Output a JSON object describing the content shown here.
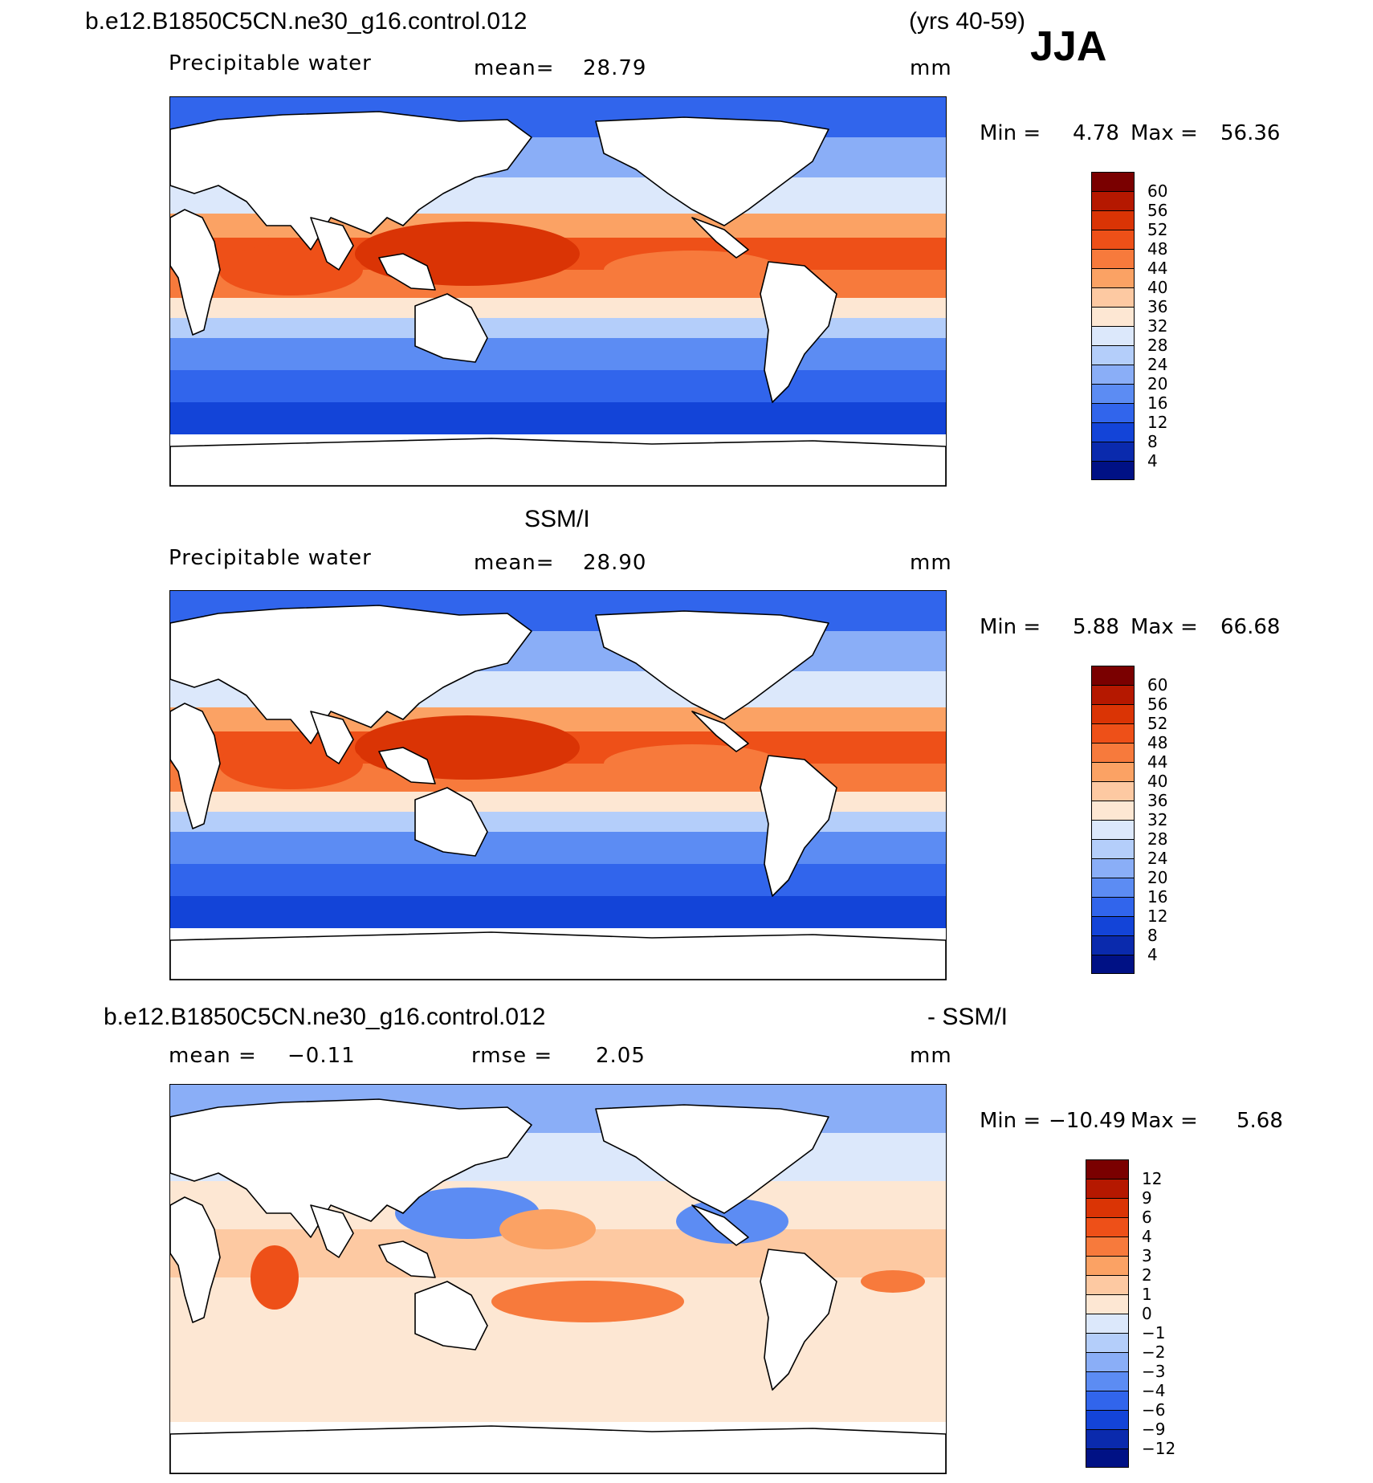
{
  "header": {
    "case": "b.e12.B1850C5CN.ne30_g16.control.012",
    "years": "(yrs 40-59)",
    "season": "JJA"
  },
  "panels": [
    {
      "id": "model",
      "heading": "",
      "field": "Precipitable water",
      "stat": "mean=",
      "stat_value": "28.79",
      "units": "mm",
      "min_label": "Min =",
      "min_value": "4.78",
      "max_label": "Max =",
      "max_value": "56.36"
    },
    {
      "id": "obs",
      "heading": "SSM/I",
      "field": "Precipitable water",
      "stat": "mean=",
      "stat_value": "28.90",
      "units": "mm",
      "min_label": "Min =",
      "min_value": "5.88",
      "max_label": "Max =",
      "max_value": "66.68"
    },
    {
      "id": "diff",
      "heading": "b.e12.B1850C5CN.ne30_g16.control.012",
      "heading_right": "- SSM/I",
      "stat": "mean =",
      "stat_value": "−0.11",
      "stat2": "rmse =",
      "stat2_value": "2.05",
      "units": "mm",
      "min_label": "Min =",
      "min_value": "−10.49",
      "max_label": "Max =",
      "max_value": "5.68"
    }
  ],
  "colorbars": {
    "pw": {
      "labels": [
        "60",
        "56",
        "52",
        "48",
        "44",
        "40",
        "36",
        "32",
        "28",
        "24",
        "20",
        "16",
        "12",
        "8",
        "4"
      ],
      "colors": [
        "#7a0000",
        "#b51800",
        "#da3405",
        "#ee5018",
        "#f77a3c",
        "#fba264",
        "#fdc9a2",
        "#fde7d3",
        "#dce8fb",
        "#b4cefa",
        "#8aaef7",
        "#5c8cf3",
        "#3165ec",
        "#1344d8",
        "#0a2aad",
        "#001185"
      ]
    },
    "diff": {
      "labels": [
        "12",
        "9",
        "6",
        "4",
        "3",
        "2",
        "1",
        "0",
        "−1",
        "−2",
        "−3",
        "−4",
        "−6",
        "−9",
        "−12"
      ],
      "colors": [
        "#7a0000",
        "#b51800",
        "#da3405",
        "#ee5018",
        "#f77a3c",
        "#fba264",
        "#fdc9a2",
        "#fde7d3",
        "#dce8fb",
        "#b4cefa",
        "#8aaef7",
        "#5c8cf3",
        "#3165ec",
        "#1344d8",
        "#0a2aad",
        "#001185"
      ]
    }
  },
  "map_data": {
    "projection": "cylindrical equidistant, 0-360 longitude (Pacific centered)",
    "pw_zonal_levels_by_latitude": [
      {
        "lat_band": "70N-60N",
        "value_mm": 8
      },
      {
        "lat_band": "60N-40N",
        "value_mm": 18
      },
      {
        "lat_band": "40N-25N",
        "value_mm": 30
      },
      {
        "lat_band": "25N-5N",
        "value_mm": 48
      },
      {
        "lat_band": "5N-10S",
        "value_mm": 40
      },
      {
        "lat_band": "10S-25S",
        "value_mm": 26
      },
      {
        "lat_band": "25S-40S",
        "value_mm": 16
      },
      {
        "lat_band": "40S-60S",
        "value_mm": 10
      }
    ]
  }
}
